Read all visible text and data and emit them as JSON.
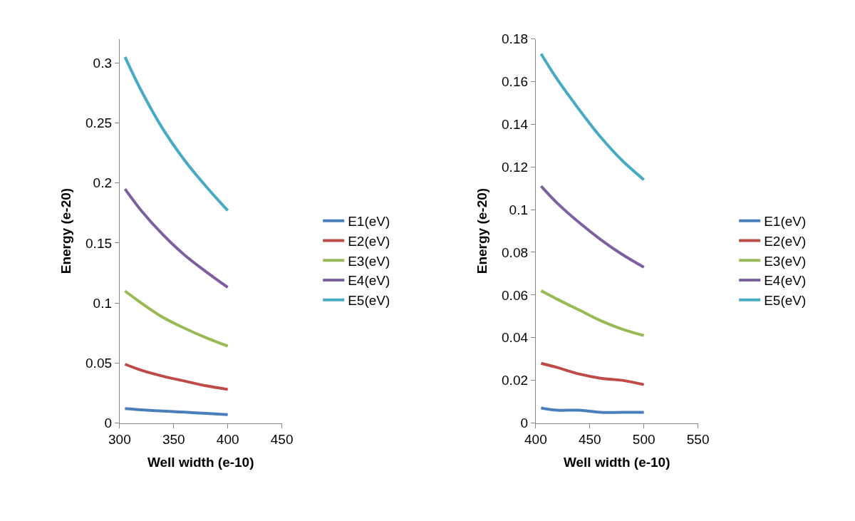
{
  "chart_data": [
    {
      "type": "line",
      "xlabel": "Well width (e-10)",
      "ylabel": "Energy (e-20)",
      "x": [
        305,
        320,
        340,
        360,
        380,
        400
      ],
      "xlim": [
        300,
        450
      ],
      "xticks": [
        300,
        350,
        400,
        450
      ],
      "ylim": [
        0,
        0.32
      ],
      "yticks": [
        0,
        0.05,
        0.1,
        0.15,
        0.2,
        0.25,
        0.3
      ],
      "grid": false,
      "legend": "right",
      "marker": "none",
      "line_style": "solid",
      "series": [
        {
          "name": "E1(eV)",
          "color": "#4a7ebb",
          "values": [
            0.012,
            0.011,
            0.01,
            0.009,
            0.008,
            0.007
          ]
        },
        {
          "name": "E2(eV)",
          "color": "#be4b48",
          "values": [
            0.049,
            0.044,
            0.039,
            0.035,
            0.031,
            0.028
          ]
        },
        {
          "name": "E3(eV)",
          "color": "#98b954",
          "values": [
            0.11,
            0.1,
            0.088,
            0.079,
            0.071,
            0.064
          ]
        },
        {
          "name": "E4(eV)",
          "color": "#7d60a0",
          "values": [
            0.195,
            0.177,
            0.157,
            0.14,
            0.126,
            0.113
          ]
        },
        {
          "name": "E5(eV)",
          "color": "#46aac5",
          "values": [
            0.305,
            0.277,
            0.245,
            0.219,
            0.197,
            0.177
          ]
        }
      ]
    },
    {
      "type": "line",
      "xlabel": "Well width (e-10)",
      "ylabel": "Energy (e-20)",
      "x": [
        405,
        420,
        440,
        460,
        480,
        500
      ],
      "xlim": [
        400,
        550
      ],
      "xticks": [
        400,
        450,
        500,
        550
      ],
      "ylim": [
        0,
        0.18
      ],
      "yticks": [
        0,
        0.02,
        0.04,
        0.06,
        0.08,
        0.1,
        0.12,
        0.14,
        0.16,
        0.18
      ],
      "grid": false,
      "legend": "right",
      "marker": "none",
      "line_style": "solid",
      "series": [
        {
          "name": "E1(eV)",
          "color": "#4a7ebb",
          "values": [
            0.007,
            0.006,
            0.006,
            0.005,
            0.005,
            0.005
          ]
        },
        {
          "name": "E2(eV)",
          "color": "#be4b48",
          "values": [
            0.028,
            0.026,
            0.023,
            0.021,
            0.02,
            0.018
          ]
        },
        {
          "name": "E3(eV)",
          "color": "#98b954",
          "values": [
            0.062,
            0.058,
            0.053,
            0.048,
            0.044,
            0.041
          ]
        },
        {
          "name": "E4(eV)",
          "color": "#7d60a0",
          "values": [
            0.111,
            0.103,
            0.094,
            0.086,
            0.079,
            0.073
          ]
        },
        {
          "name": "E5(eV)",
          "color": "#46aac5",
          "values": [
            0.173,
            0.161,
            0.147,
            0.134,
            0.123,
            0.114
          ]
        }
      ]
    }
  ]
}
